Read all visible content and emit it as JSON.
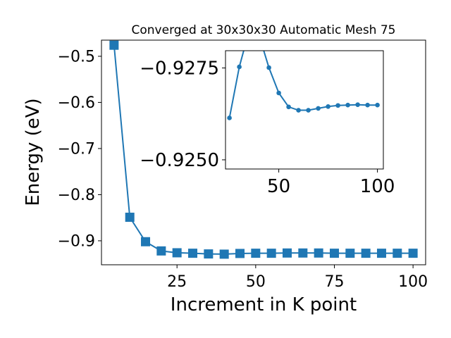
{
  "chart_data": [
    {
      "type": "line",
      "title": "Converged at 30x30x30 Automatic Mesh 75",
      "xlabel": "Increment in K point",
      "ylabel": "Energy (eV)",
      "xlim": [
        1,
        104
      ],
      "ylim": [
        -0.952,
        -0.465
      ],
      "xticks": [
        25,
        50,
        75,
        100
      ],
      "xtick_labels": [
        "25",
        "50",
        "75",
        "100"
      ],
      "yticks": [
        -0.5,
        -0.6,
        -0.7,
        -0.8,
        -0.9
      ],
      "ytick_labels": [
        "−0.5",
        "−0.6",
        "−0.7",
        "−0.8",
        "−0.9"
      ],
      "grid": false,
      "marker": "square",
      "color": "#1f77b4",
      "series": [
        {
          "x": [
            5,
            10,
            15,
            20,
            25,
            30,
            35,
            40,
            45,
            50,
            55,
            60,
            65,
            70,
            75,
            80,
            85,
            90,
            95,
            100
          ],
          "values": [
            -0.476,
            -0.849,
            -0.902,
            -0.922,
            -0.926,
            -0.927,
            -0.9285,
            -0.929,
            -0.9275,
            -0.927,
            -0.927,
            -0.9265,
            -0.9265,
            -0.9265,
            -0.927,
            -0.927,
            -0.927,
            -0.927,
            -0.927,
            -0.927
          ]
        }
      ]
    },
    {
      "type": "line",
      "title": "",
      "xlabel": "",
      "ylabel": "",
      "xlim": [
        23,
        103
      ],
      "ylim": [
        -0.92475,
        -0.92797
      ],
      "xticks": [
        50,
        100
      ],
      "xtick_labels": [
        "50",
        "100"
      ],
      "yticks": [
        -0.9275,
        -0.925
      ],
      "ytick_labels": [
        "−0.9275",
        "−0.9250"
      ],
      "y_axis_inverted": true,
      "grid": false,
      "marker": "circle",
      "color": "#1f77b4",
      "series": [
        {
          "x": [
            25,
            30,
            35,
            40,
            45,
            50,
            55,
            60,
            65,
            70,
            75,
            80,
            85,
            90,
            95,
            100
          ],
          "values": [
            -0.92614,
            -0.92753,
            -0.92852,
            -0.92839,
            -0.92751,
            -0.92682,
            -0.92644,
            -0.92635,
            -0.92635,
            -0.9264,
            -0.92645,
            -0.92648,
            -0.92649,
            -0.9265,
            -0.92649,
            -0.92649
          ]
        }
      ]
    }
  ]
}
